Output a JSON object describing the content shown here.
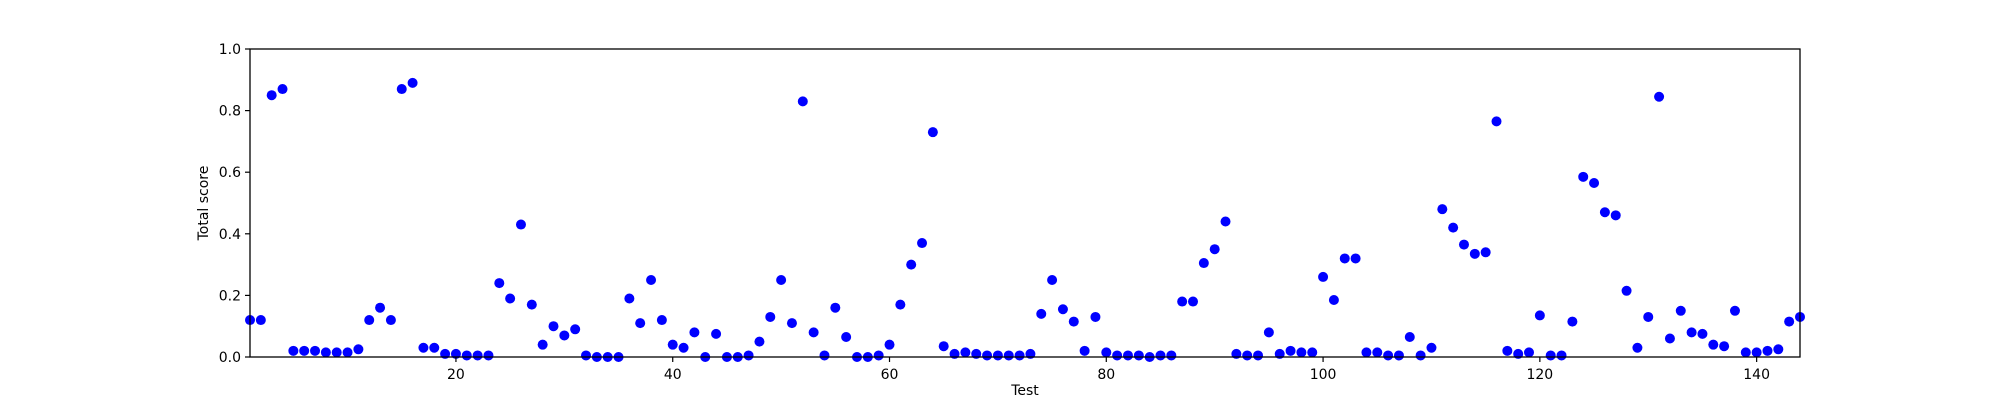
{
  "chart_data": {
    "type": "scatter",
    "xlabel": "Test",
    "ylabel": "Total score",
    "xlim": [
      1,
      144
    ],
    "ylim": [
      0.0,
      1.0
    ],
    "x_ticks": [
      20,
      40,
      60,
      80,
      100,
      120,
      140
    ],
    "y_ticks": [
      0.0,
      0.2,
      0.4,
      0.6,
      0.8,
      1.0
    ],
    "x_tick_labels": [
      "20",
      "40",
      "60",
      "80",
      "100",
      "120",
      "140"
    ],
    "y_tick_labels": [
      "0.0",
      "0.2",
      "0.4",
      "0.6",
      "0.8",
      "1.0"
    ],
    "grid": false,
    "legend": false,
    "marker_color": "#0000ff",
    "series": [
      {
        "x": [
          1,
          2,
          3,
          4,
          5,
          6,
          7,
          8,
          9,
          10,
          11,
          12,
          13,
          14,
          15,
          16,
          17,
          18,
          19,
          20,
          21,
          22,
          23,
          24,
          25,
          26,
          27,
          28,
          29,
          30,
          31,
          32,
          33,
          34,
          35,
          36,
          37,
          38,
          39,
          40,
          41,
          42,
          43,
          44,
          45,
          46,
          47,
          48,
          49,
          50,
          51,
          52,
          53,
          54,
          55,
          56,
          57,
          58,
          59,
          60,
          61,
          62,
          63,
          64,
          65,
          66,
          67,
          68,
          69,
          70,
          71,
          72,
          73,
          74,
          75,
          76,
          77,
          78,
          79,
          80,
          81,
          82,
          83,
          84,
          85,
          86,
          87,
          88,
          89,
          90,
          91,
          92,
          93,
          94,
          95,
          96,
          97,
          98,
          99,
          100,
          101,
          102,
          103,
          104,
          105,
          106,
          107,
          108,
          109,
          110,
          111,
          112,
          113,
          114,
          115,
          116,
          117,
          118,
          119,
          120,
          121,
          122,
          123,
          124,
          125,
          126,
          127,
          128,
          129,
          130,
          131,
          132,
          133,
          134,
          135,
          136,
          137,
          138,
          139,
          140,
          141,
          142,
          143,
          144
        ],
        "y": [
          0.12,
          0.12,
          0.85,
          0.87,
          0.02,
          0.02,
          0.02,
          0.015,
          0.015,
          0.015,
          0.025,
          0.12,
          0.16,
          0.12,
          0.87,
          0.89,
          0.03,
          0.03,
          0.01,
          0.01,
          0.005,
          0.005,
          0.005,
          0.24,
          0.19,
          0.43,
          0.17,
          0.04,
          0.1,
          0.07,
          0.09,
          0.005,
          0.0,
          0.0,
          0.0,
          0.19,
          0.11,
          0.25,
          0.12,
          0.04,
          0.03,
          0.08,
          0.0,
          0.075,
          0.0,
          0.0,
          0.005,
          0.05,
          0.13,
          0.25,
          0.11,
          0.83,
          0.08,
          0.005,
          0.16,
          0.065,
          0.0,
          0.0,
          0.005,
          0.04,
          0.17,
          0.3,
          0.37,
          0.73,
          0.035,
          0.01,
          0.015,
          0.01,
          0.005,
          0.005,
          0.005,
          0.005,
          0.01,
          0.14,
          0.25,
          0.155,
          0.115,
          0.02,
          0.13,
          0.015,
          0.005,
          0.005,
          0.005,
          0.0,
          0.005,
          0.005,
          0.18,
          0.18,
          0.305,
          0.35,
          0.44,
          0.01,
          0.005,
          0.005,
          0.08,
          0.01,
          0.02,
          0.015,
          0.015,
          0.26,
          0.185,
          0.32,
          0.32,
          0.015,
          0.015,
          0.005,
          0.005,
          0.065,
          0.005,
          0.03,
          0.48,
          0.42,
          0.365,
          0.335,
          0.34,
          0.765,
          0.02,
          0.01,
          0.015,
          0.135,
          0.005,
          0.005,
          0.115,
          0.585,
          0.565,
          0.47,
          0.46,
          0.215,
          0.03,
          0.13,
          0.845,
          0.06,
          0.15,
          0.08,
          0.075,
          0.04,
          0.035,
          0.15,
          0.015,
          0.015,
          0.02,
          0.025,
          0.115,
          0.13
        ]
      }
    ]
  }
}
